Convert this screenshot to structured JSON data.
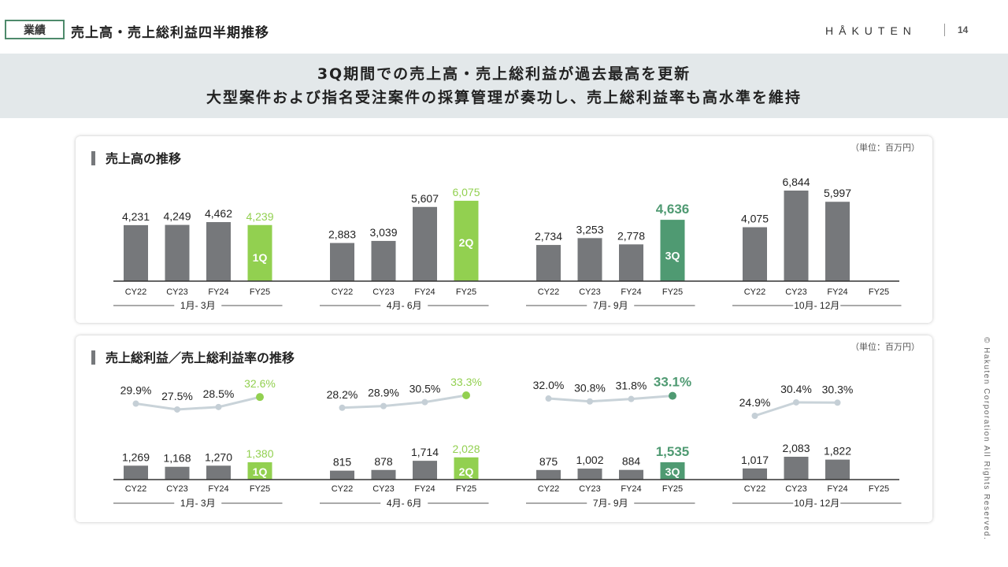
{
  "header": {
    "category_tag": "業績",
    "title": "売上高・売上総利益四半期推移",
    "brand": "HÅKUTEN",
    "page_number": "14"
  },
  "banner": {
    "line1": "3Q期間での売上高・売上総利益が過去最高を更新",
    "line2": "大型案件および指名受注案件の採算管理が奏功し、売上総利益率も高水準を維持"
  },
  "copyright": "© Hakuten Corporation All Rights Reserved.",
  "colors": {
    "gray_bar": "#76787b",
    "highlight_green": "#92d050",
    "dark_green": "#4f9a72",
    "line_color": "#c9d3d9"
  },
  "chart_data": [
    {
      "type": "bar",
      "title": "売上高の推移",
      "unit_label": "（単位：百万円）",
      "groups": [
        {
          "label": "1月- 3月",
          "categories": [
            "CY22",
            "CY23",
            "FY24",
            "FY25"
          ],
          "values": [
            4231,
            4249,
            4462,
            4239
          ],
          "value_labels": [
            "4,231",
            "4,249",
            "4,462",
            "4,239"
          ],
          "highlight": "1Q"
        },
        {
          "label": "4月- 6月",
          "categories": [
            "CY22",
            "CY23",
            "FY24",
            "FY25"
          ],
          "values": [
            2883,
            3039,
            5607,
            6075
          ],
          "value_labels": [
            "2,883",
            "3,039",
            "5,607",
            "6,075"
          ],
          "highlight": "2Q"
        },
        {
          "label": "7月- 9月",
          "categories": [
            "CY22",
            "CY23",
            "FY24",
            "FY25"
          ],
          "values": [
            2734,
            3253,
            2778,
            4636
          ],
          "value_labels": [
            "2,734",
            "3,253",
            "2,778",
            "4,636"
          ],
          "highlight": "3Q"
        },
        {
          "label": "10月- 12月",
          "categories": [
            "CY22",
            "CY23",
            "FY24",
            "FY25"
          ],
          "values": [
            4075,
            6844,
            5997,
            null
          ],
          "value_labels": [
            "4,075",
            "6,844",
            "5,997",
            ""
          ],
          "highlight": ""
        }
      ]
    },
    {
      "type": "bar+line",
      "title": "売上総利益／売上総利益率の推移",
      "unit_label": "（単位：百万円）",
      "groups": [
        {
          "label": "1月- 3月",
          "categories": [
            "CY22",
            "CY23",
            "FY24",
            "FY25"
          ],
          "values": [
            1269,
            1168,
            1270,
            1380
          ],
          "value_labels": [
            "1,269",
            "1,168",
            "1,270",
            "1,380"
          ],
          "margins": [
            29.9,
            27.5,
            28.5,
            32.6
          ],
          "margin_labels": [
            "29.9%",
            "27.5%",
            "28.5%",
            "32.6%"
          ],
          "highlight": "1Q"
        },
        {
          "label": "4月- 6月",
          "categories": [
            "CY22",
            "CY23",
            "FY24",
            "FY25"
          ],
          "values": [
            815,
            878,
            1714,
            2028
          ],
          "value_labels": [
            "815",
            "878",
            "1,714",
            "2,028"
          ],
          "margins": [
            28.2,
            28.9,
            30.5,
            33.3
          ],
          "margin_labels": [
            "28.2%",
            "28.9%",
            "30.5%",
            "33.3%"
          ],
          "highlight": "2Q"
        },
        {
          "label": "7月- 9月",
          "categories": [
            "CY22",
            "CY23",
            "FY24",
            "FY25"
          ],
          "values": [
            875,
            1002,
            884,
            1535
          ],
          "value_labels": [
            "875",
            "1,002",
            "884",
            "1,535"
          ],
          "margins": [
            32.0,
            30.8,
            31.8,
            33.1
          ],
          "margin_labels": [
            "32.0%",
            "30.8%",
            "31.8%",
            "33.1%"
          ],
          "highlight": "3Q"
        },
        {
          "label": "10月- 12月",
          "categories": [
            "CY22",
            "CY23",
            "FY24",
            "FY25"
          ],
          "values": [
            1017,
            2083,
            1822,
            null
          ],
          "value_labels": [
            "1,017",
            "2,083",
            "1,822",
            ""
          ],
          "margins": [
            24.9,
            30.4,
            30.3,
            null
          ],
          "margin_labels": [
            "24.9%",
            "30.4%",
            "30.3%",
            ""
          ],
          "highlight": ""
        }
      ]
    }
  ]
}
